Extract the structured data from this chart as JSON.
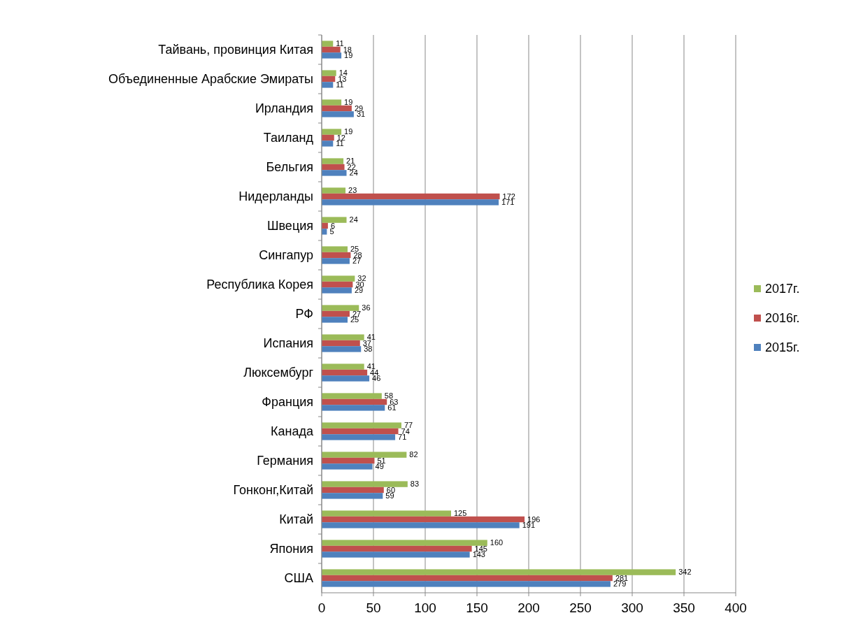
{
  "chart_data": {
    "type": "bar",
    "orientation": "horizontal",
    "categories": [
      "Тайвань, провинция Китая",
      "Объединенные Арабские Эмираты",
      "Ирландия",
      "Таиланд",
      "Бельгия",
      "Нидерланды",
      "Швеция",
      "Сингапур",
      "Республика Корея",
      "РФ",
      "Испания",
      "Люксембург",
      "Франция",
      "Канада",
      "Германия",
      "Гонконг,Китай",
      "Китай",
      "Япония",
      "США"
    ],
    "series": [
      {
        "name": "2017г.",
        "color": "#9bbb59",
        "values": [
          11,
          14,
          19,
          19,
          21,
          23,
          24,
          25,
          32,
          36,
          41,
          41,
          58,
          77,
          82,
          83,
          125,
          160,
          342
        ]
      },
      {
        "name": "2016г.",
        "color": "#c0504d",
        "values": [
          18,
          13,
          29,
          12,
          22,
          172,
          6,
          28,
          30,
          27,
          37,
          44,
          63,
          74,
          51,
          60,
          196,
          145,
          281
        ]
      },
      {
        "name": "2015г.",
        "color": "#4f81bd",
        "values": [
          19,
          11,
          31,
          11,
          24,
          171,
          5,
          27,
          29,
          25,
          38,
          46,
          61,
          71,
          49,
          59,
          191,
          143,
          279
        ]
      }
    ],
    "xlim": [
      0,
      400
    ],
    "xticks": [
      0,
      50,
      100,
      150,
      200,
      250,
      300,
      350,
      400
    ],
    "grid": "x",
    "legend": "right",
    "data_labels": true
  }
}
